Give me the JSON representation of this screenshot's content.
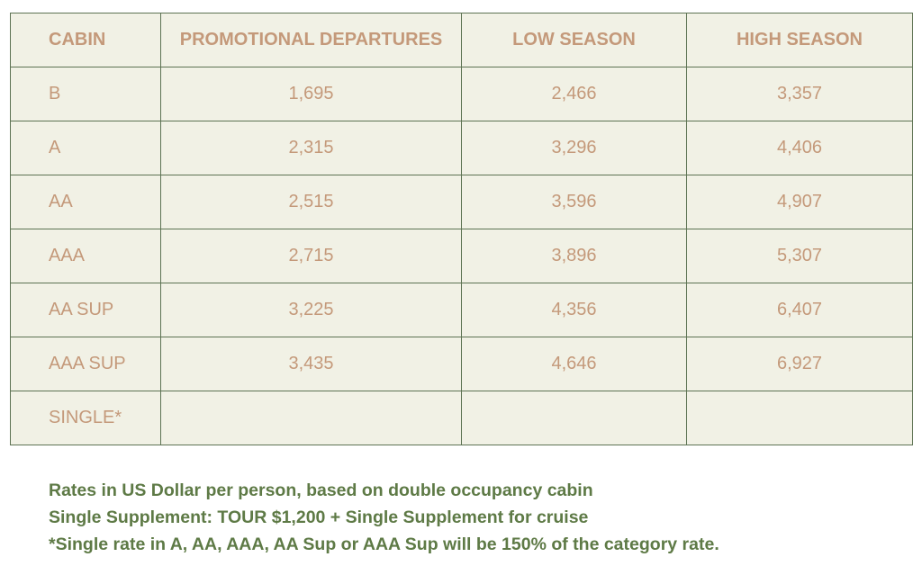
{
  "table": {
    "headers": [
      "CABIN",
      "PROMOTIONAL DEPARTURES",
      "LOW SEASON",
      "HIGH SEASON"
    ],
    "rows": [
      {
        "cabin": "B",
        "promotional": "1,695",
        "low": "2,466",
        "high": "3,357"
      },
      {
        "cabin": "A",
        "promotional": "2,315",
        "low": "3,296",
        "high": "4,406"
      },
      {
        "cabin": "AA",
        "promotional": "2,515",
        "low": "3,596",
        "high": "4,907"
      },
      {
        "cabin": "AAA",
        "promotional": "2,715",
        "low": "3,896",
        "high": "5,307"
      },
      {
        "cabin": "AA SUP",
        "promotional": "3,225",
        "low": "4,356",
        "high": "6,407"
      },
      {
        "cabin": "AAA SUP",
        "promotional": "3,435",
        "low": "4,646",
        "high": "6,927"
      },
      {
        "cabin": "SINGLE*",
        "promotional": "",
        "low": "",
        "high": ""
      }
    ]
  },
  "notes": [
    "Rates in US Dollar per person, based on double occupancy cabin",
    "Single Supplement: TOUR $1,200 + Single Supplement for cruise",
    "*Single rate in A, AA, AAA, AA Sup or AAA Sup will be 150% of the category rate."
  ],
  "colors": {
    "table_background": "#f1f1e5",
    "border": "#5d7353",
    "table_text": "#c4997a",
    "notes_text": "#5e7a46"
  }
}
